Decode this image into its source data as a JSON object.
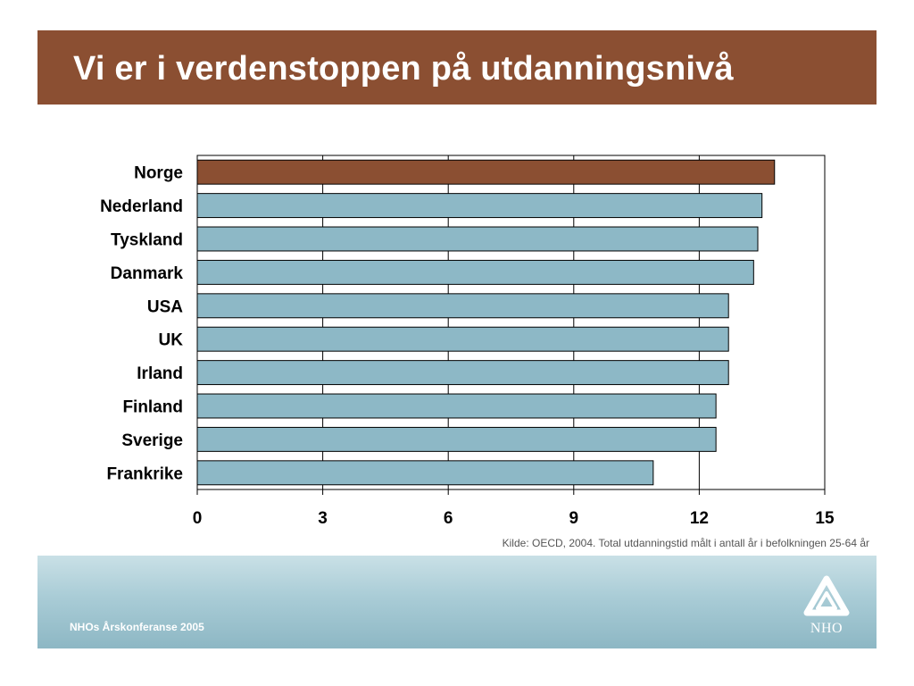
{
  "slide": {
    "title": "Vi er i verdenstoppen på utdanningsnivå",
    "source": "Kilde: OECD, 2004. Total utdanningstid målt i antall år i befolkningen 25-64 år",
    "footer": "NHOs Årskonferanse 2005",
    "logo_text": "NHO"
  },
  "colors": {
    "title_bg": "#8B4F32",
    "highlight_bar": "#8B4F32",
    "bar": "#8DB8C6"
  },
  "chart_data": {
    "type": "bar",
    "orientation": "horizontal",
    "categories": [
      "Norge",
      "Nederland",
      "Tyskland",
      "Danmark",
      "USA",
      "UK",
      "Irland",
      "Finland",
      "Sverige",
      "Frankrike"
    ],
    "values": [
      13.8,
      13.5,
      13.4,
      13.3,
      12.7,
      12.7,
      12.7,
      12.4,
      12.4,
      10.9
    ],
    "highlight": "Norge",
    "xlim": [
      0,
      15
    ],
    "xticks": [
      0,
      3,
      6,
      9,
      12,
      15
    ],
    "grid": "vertical"
  }
}
